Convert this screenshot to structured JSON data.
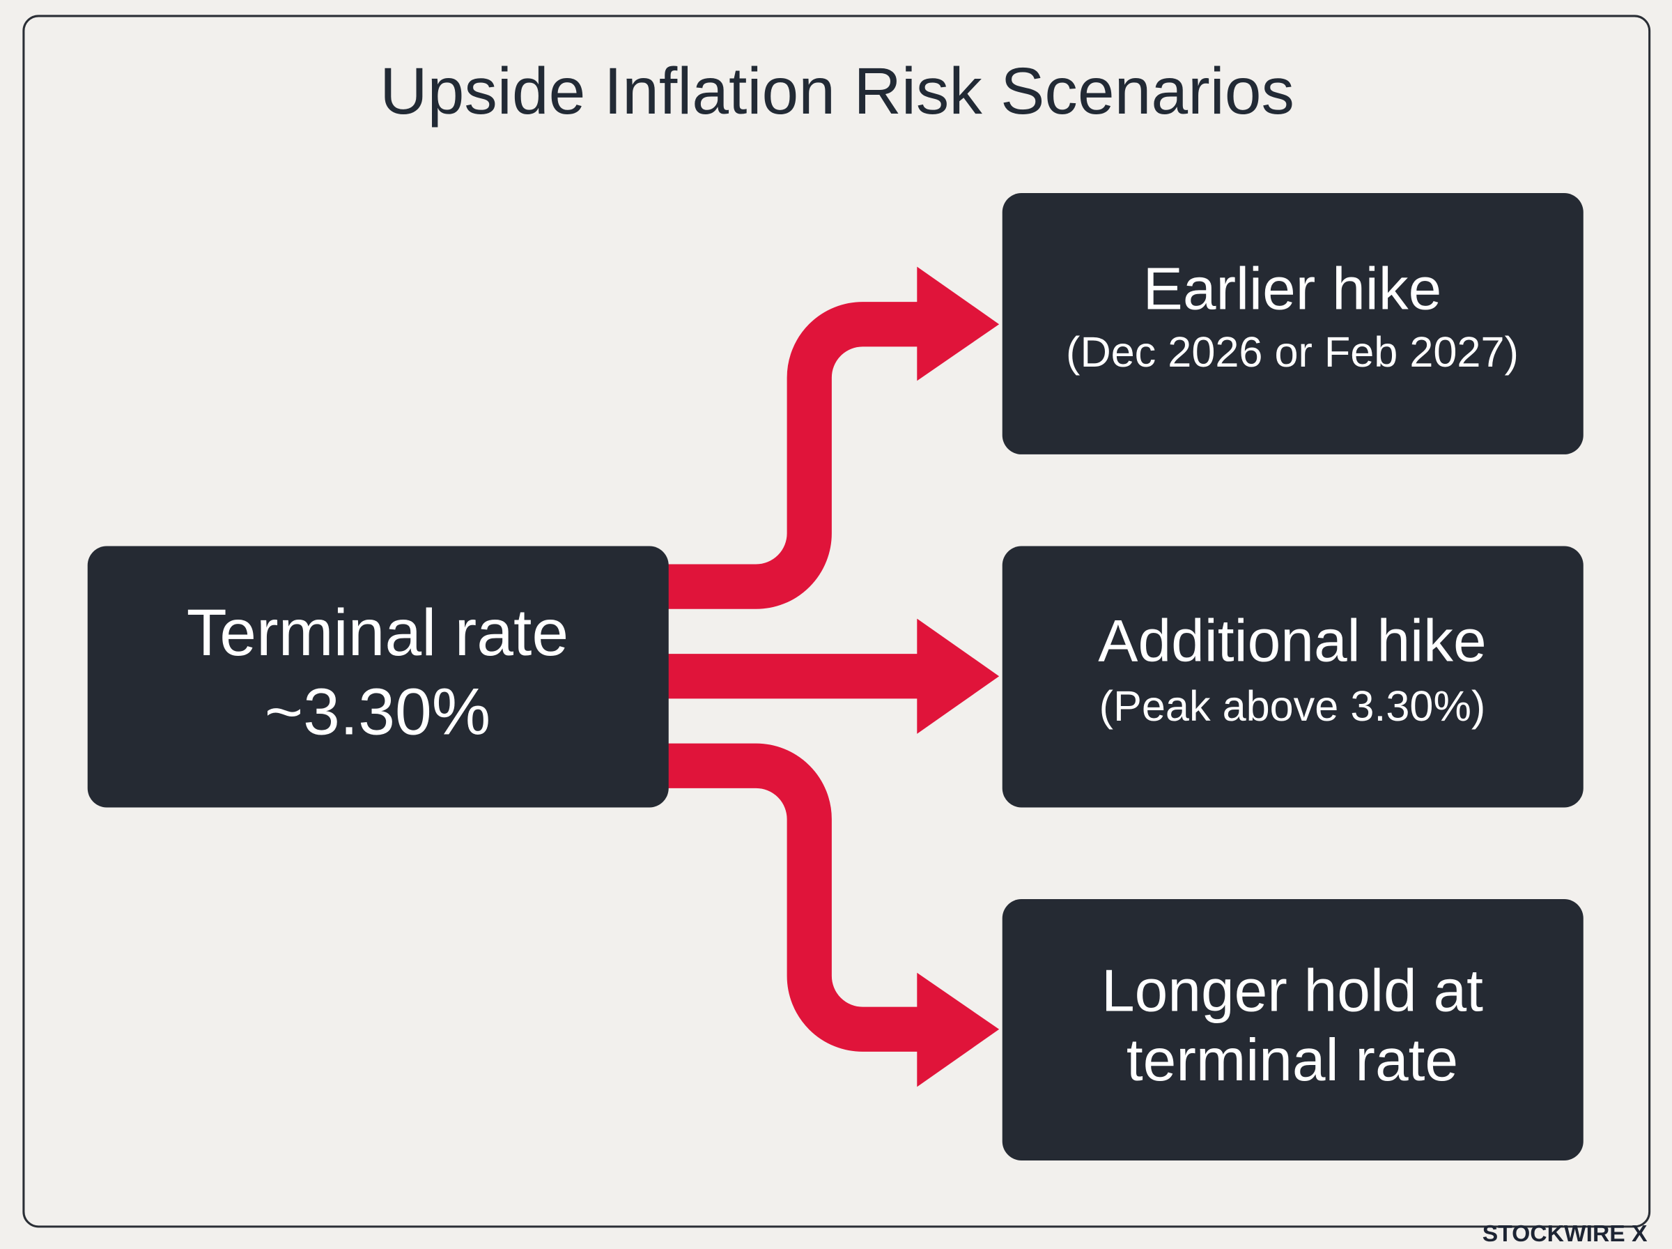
{
  "header": {
    "title": "Upside Inflation Risk Scenarios"
  },
  "nodes": [
    {
      "lines": [
        "Terminal rate",
        "~3.30%"
      ]
    },
    {
      "lines": [
        "Earlier hike",
        "(Dec 2026 or Feb 2027)"
      ]
    },
    {
      "lines": [
        "Additional hike",
        "(Peak above 3.30%)"
      ]
    },
    {
      "lines": [
        "Longer hold at",
        "terminal rate"
      ]
    }
  ],
  "watermark": "STOCKWIRE X"
}
